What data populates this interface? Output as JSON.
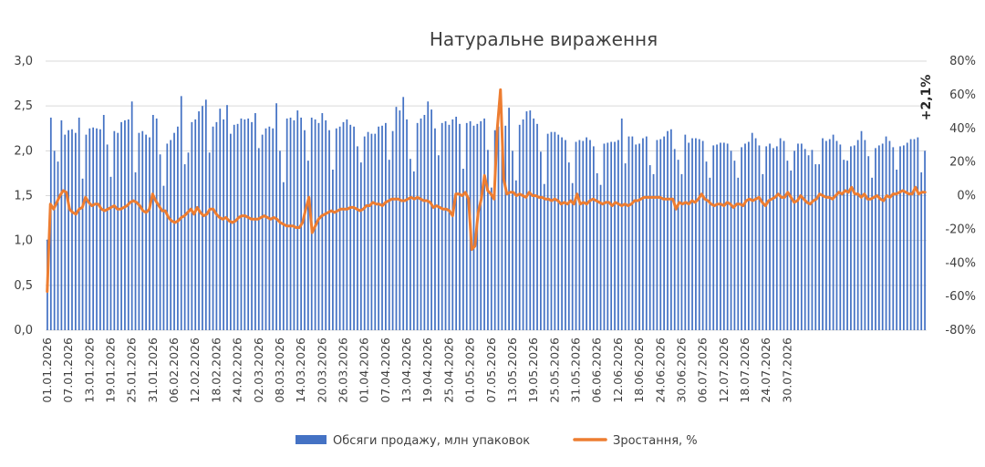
{
  "chart_data": {
    "type": "bar+line",
    "title": "Натуральне вираження",
    "x_tick_labels": [
      "01.01.2026",
      "07.01.2026",
      "13.01.2026",
      "19.01.2026",
      "25.01.2026",
      "31.01.2026",
      "06.02.2026",
      "12.02.2026",
      "18.02.2026",
      "24.02.2026",
      "02.03.2026",
      "08.03.2026",
      "14.03.2026",
      "20.03.2026",
      "26.03.2026",
      "01.04.2026",
      "07.04.2026",
      "13.04.2026",
      "19.04.2026",
      "25.04.2026",
      "01.05.2026",
      "07.05.2026",
      "13.05.2026",
      "19.05.2026",
      "25.05.2026",
      "31.05.2026",
      "06.06.2026",
      "12.06.2026",
      "18.06.2026",
      "24.06.2026",
      "30.06.2026",
      "06.07.2026",
      "12.07.2026",
      "18.07.2026",
      "24.07.2026",
      "30.07.2026"
    ],
    "left_axis": {
      "min": 0,
      "max": 3.0,
      "ticks": [
        "0,0",
        "0,5",
        "1,0",
        "1,5",
        "2,0",
        "2,5",
        "3,0"
      ]
    },
    "right_axis": {
      "min": -80,
      "max": 80,
      "ticks": [
        "-80%",
        "-60%",
        "-40%",
        "-20%",
        "0%",
        "20%",
        "40%",
        "60%",
        "80%"
      ]
    },
    "gridlines": "horizontal",
    "legend_position": "bottom",
    "annotation": "+2,1%",
    "series": [
      {
        "name": "Обсяги продажу, млн упаковок",
        "kind": "bar",
        "axis": "left",
        "color": "#4472C4",
        "values": [
          1.01,
          2.37,
          2.0,
          1.88,
          2.34,
          2.18,
          2.23,
          2.24,
          2.2,
          2.37,
          1.69,
          2.18,
          2.25,
          2.26,
          2.25,
          2.24,
          2.4,
          2.07,
          1.71,
          2.22,
          2.2,
          2.32,
          2.34,
          2.35,
          2.55,
          1.76,
          2.2,
          2.22,
          2.18,
          2.15,
          2.4,
          2.36,
          1.96,
          1.61,
          2.08,
          2.12,
          2.2,
          2.27,
          2.61,
          1.85,
          1.98,
          2.32,
          2.35,
          2.44,
          2.5,
          2.57,
          1.98,
          2.27,
          2.32,
          2.47,
          2.35,
          2.51,
          2.19,
          2.29,
          2.3,
          2.36,
          2.35,
          2.36,
          2.32,
          2.42,
          2.03,
          2.18,
          2.25,
          2.27,
          2.25,
          2.53,
          2.0,
          1.65,
          2.36,
          2.37,
          2.34,
          2.45,
          2.37,
          2.23,
          1.89,
          2.37,
          2.35,
          2.31,
          2.42,
          2.34,
          2.23,
          1.79,
          2.25,
          2.27,
          2.32,
          2.35,
          2.29,
          2.27,
          2.05,
          1.87,
          2.16,
          2.21,
          2.19,
          2.19,
          2.27,
          2.28,
          2.31,
          1.9,
          2.22,
          2.49,
          2.45,
          2.6,
          2.35,
          1.91,
          1.77,
          2.31,
          2.36,
          2.4,
          2.55,
          2.46,
          2.25,
          1.95,
          2.31,
          2.33,
          2.29,
          2.35,
          2.38,
          2.3,
          1.8,
          2.31,
          2.33,
          2.28,
          2.3,
          2.33,
          2.36,
          2.01,
          1.59,
          2.23,
          2.27,
          2.33,
          2.28,
          2.48,
          2.0,
          1.67,
          2.29,
          2.35,
          2.44,
          2.45,
          2.36,
          2.3,
          1.99,
          1.63,
          2.19,
          2.21,
          2.21,
          2.18,
          2.15,
          2.12,
          1.87,
          1.64,
          2.1,
          2.12,
          2.11,
          2.15,
          2.12,
          2.05,
          1.75,
          1.62,
          2.08,
          2.09,
          2.1,
          2.1,
          2.12,
          2.36,
          1.86,
          2.16,
          2.16,
          2.07,
          2.08,
          2.14,
          2.16,
          1.84,
          1.74,
          2.12,
          2.13,
          2.16,
          2.22,
          2.24,
          2.02,
          1.9,
          1.74,
          2.18,
          2.09,
          2.14,
          2.14,
          2.13,
          2.11,
          1.88,
          1.7,
          2.06,
          2.07,
          2.09,
          2.09,
          2.08,
          2.0,
          1.89,
          1.7,
          2.04,
          2.08,
          2.1,
          2.2,
          2.14,
          2.06,
          1.74,
          2.05,
          2.08,
          2.03,
          2.05,
          2.14,
          2.11,
          1.89,
          1.78,
          2.0,
          2.08,
          2.08,
          2.02,
          1.95,
          2.01,
          1.85,
          1.85,
          2.14,
          2.11,
          2.13,
          2.18,
          2.11,
          2.07,
          1.9,
          1.89,
          2.05,
          2.06,
          2.12,
          2.22,
          2.12,
          1.94,
          1.7,
          2.03,
          2.06,
          2.08,
          2.16,
          2.11,
          2.04,
          1.79,
          2.05,
          2.06,
          2.09,
          2.13,
          2.13,
          2.15,
          1.76,
          2.0
        ]
      },
      {
        "name": "Зростання, %",
        "kind": "line",
        "axis": "right",
        "color": "#ED7D31",
        "values": [
          -57,
          -5,
          -8,
          -4,
          0,
          3,
          2,
          -8,
          -10,
          -11,
          -8,
          -7,
          -1,
          -4,
          -6,
          -5,
          -5,
          -8,
          -9,
          -8,
          -7,
          -6,
          -8,
          -8,
          -7,
          -6,
          -4,
          -3,
          -4,
          -6,
          -9,
          -10,
          -8,
          1,
          -3,
          -6,
          -9,
          -9,
          -13,
          -15,
          -16,
          -15,
          -13,
          -12,
          -10,
          -8,
          -11,
          -7,
          -10,
          -12,
          -11,
          -8,
          -8,
          -11,
          -13,
          -14,
          -13,
          -15,
          -16,
          -15,
          -13,
          -12,
          -12,
          -13,
          -14,
          -14,
          -14,
          -13,
          -12,
          -13,
          -14,
          -13,
          -14,
          -16,
          -17,
          -18,
          -18,
          -18,
          -19,
          -19,
          -16,
          -8,
          -1,
          -22,
          -18,
          -14,
          -12,
          -11,
          -10,
          -9,
          -10,
          -9,
          -8,
          -8,
          -8,
          -7,
          -7,
          -8,
          -9,
          -8,
          -6,
          -6,
          -4,
          -5,
          -5,
          -6,
          -4,
          -3,
          -2,
          -2,
          -2,
          -3,
          -3,
          -2,
          -1,
          -2,
          -1,
          -2,
          -3,
          -3,
          -4,
          -7,
          -6,
          -7,
          -8,
          -8,
          -9,
          -12,
          1,
          1,
          0,
          2,
          -2,
          -32,
          -30,
          -10,
          -2,
          12,
          3,
          1,
          -2,
          40,
          63,
          10,
          1,
          2,
          2,
          0,
          1,
          0,
          -1,
          2,
          0,
          0,
          -1,
          -1,
          -2,
          -2,
          -3,
          -2,
          -3,
          -5,
          -4,
          -5,
          -3,
          -5,
          1,
          -5,
          -4,
          -5,
          -3,
          -2,
          -3,
          -4,
          -5,
          -4,
          -4,
          -6,
          -4,
          -5,
          -6,
          -5,
          -6,
          -5,
          -3,
          -3,
          -2,
          -1,
          -1,
          -1,
          -1,
          -1,
          -1,
          -2,
          -2,
          -2,
          -2,
          -8,
          -4,
          -5,
          -4,
          -5,
          -3,
          -4,
          -2,
          1,
          -2,
          -3,
          -5,
          -6,
          -5,
          -5,
          -6,
          -4,
          -5,
          -7,
          -5,
          -5,
          -6,
          -3,
          -2,
          -3,
          -2,
          -1,
          -4,
          -6,
          -3,
          -2,
          -1,
          1,
          -1,
          -1,
          2,
          -1,
          -4,
          -3,
          0,
          -2,
          -4,
          -5,
          -3,
          -2,
          1,
          0,
          -1,
          -1,
          -2,
          0,
          2,
          1,
          3,
          2,
          5,
          1,
          1,
          -1,
          1,
          -2,
          -2,
          -1,
          0,
          -2,
          -3,
          0,
          -1,
          1,
          1,
          2,
          3,
          2,
          1,
          1,
          5,
          1,
          2,
          2
        ]
      }
    ]
  }
}
